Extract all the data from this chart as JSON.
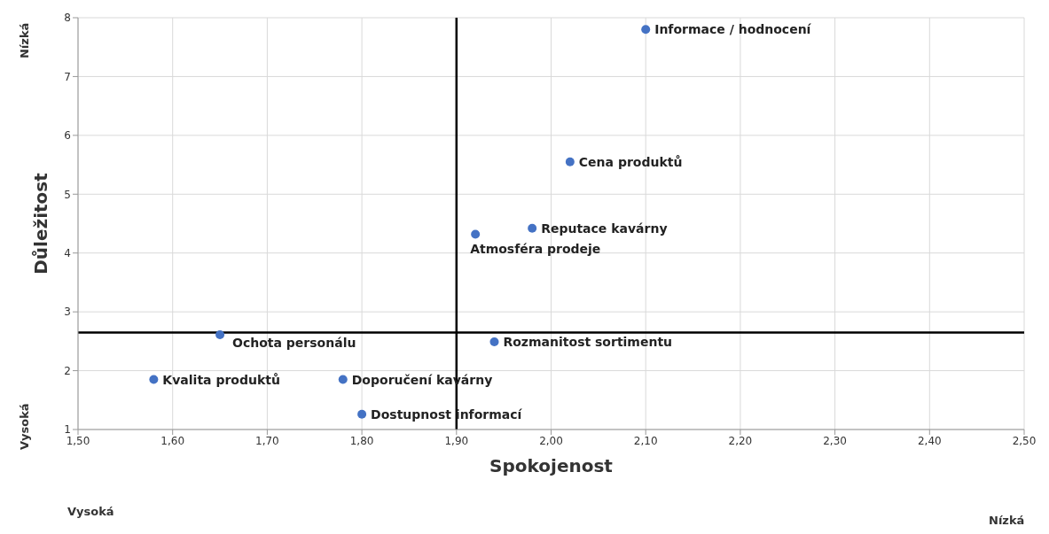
{
  "chart_data": {
    "type": "scatter",
    "xlabel": "Spokojenost",
    "ylabel": "Důležitost",
    "annotations": [
      "Vysoká",
      "Nízká",
      "Nízká",
      "Vysoká"
    ],
    "x": [
      2.1,
      2.02,
      1.98,
      1.92,
      1.65,
      1.94,
      1.58,
      1.78,
      1.8
    ],
    "series": [
      {
        "color": "#4472c4",
        "values": [
          7.8,
          5.55,
          4.42,
          4.32,
          2.61,
          2.49,
          1.85,
          1.85,
          1.26
        ],
        "value_labels": [
          "Informace / hodnocení",
          "Cena produktů",
          "Reputace kavárny",
          "Atmosféra prodeje",
          "Ochota personálu",
          "Rozmanitost sortimentu",
          "Kvalita produktů",
          "Doporučení kavárny",
          "Dostupnost informací"
        ]
      }
    ],
    "xlim": [
      1.5,
      2.5
    ],
    "xticks": [
      {
        "value": 1.5,
        "label": "1,50"
      },
      {
        "value": 1.6,
        "label": "1,60"
      },
      {
        "value": 1.7,
        "label": "1,70"
      },
      {
        "value": 1.8,
        "label": "1,80"
      },
      {
        "value": 1.9,
        "label": "1,90"
      },
      {
        "value": 2.0,
        "label": "2,00"
      },
      {
        "value": 2.1,
        "label": "2,10"
      },
      {
        "value": 2.2,
        "label": "2,20"
      },
      {
        "value": 2.3,
        "label": "2,30"
      },
      {
        "value": 2.4,
        "label": "2,40"
      },
      {
        "value": 2.5,
        "label": "2,50"
      }
    ],
    "ylim": [
      1,
      8
    ],
    "yticks": [
      1,
      2,
      3,
      4,
      5,
      6,
      7,
      8
    ],
    "ref_lines": [
      {
        "axis": "x",
        "value": 1.9,
        "color": "#000000"
      },
      {
        "axis": "y",
        "value": 2.65,
        "color": "#000000"
      }
    ],
    "grid": true,
    "marker": "circle",
    "legend": false
  }
}
